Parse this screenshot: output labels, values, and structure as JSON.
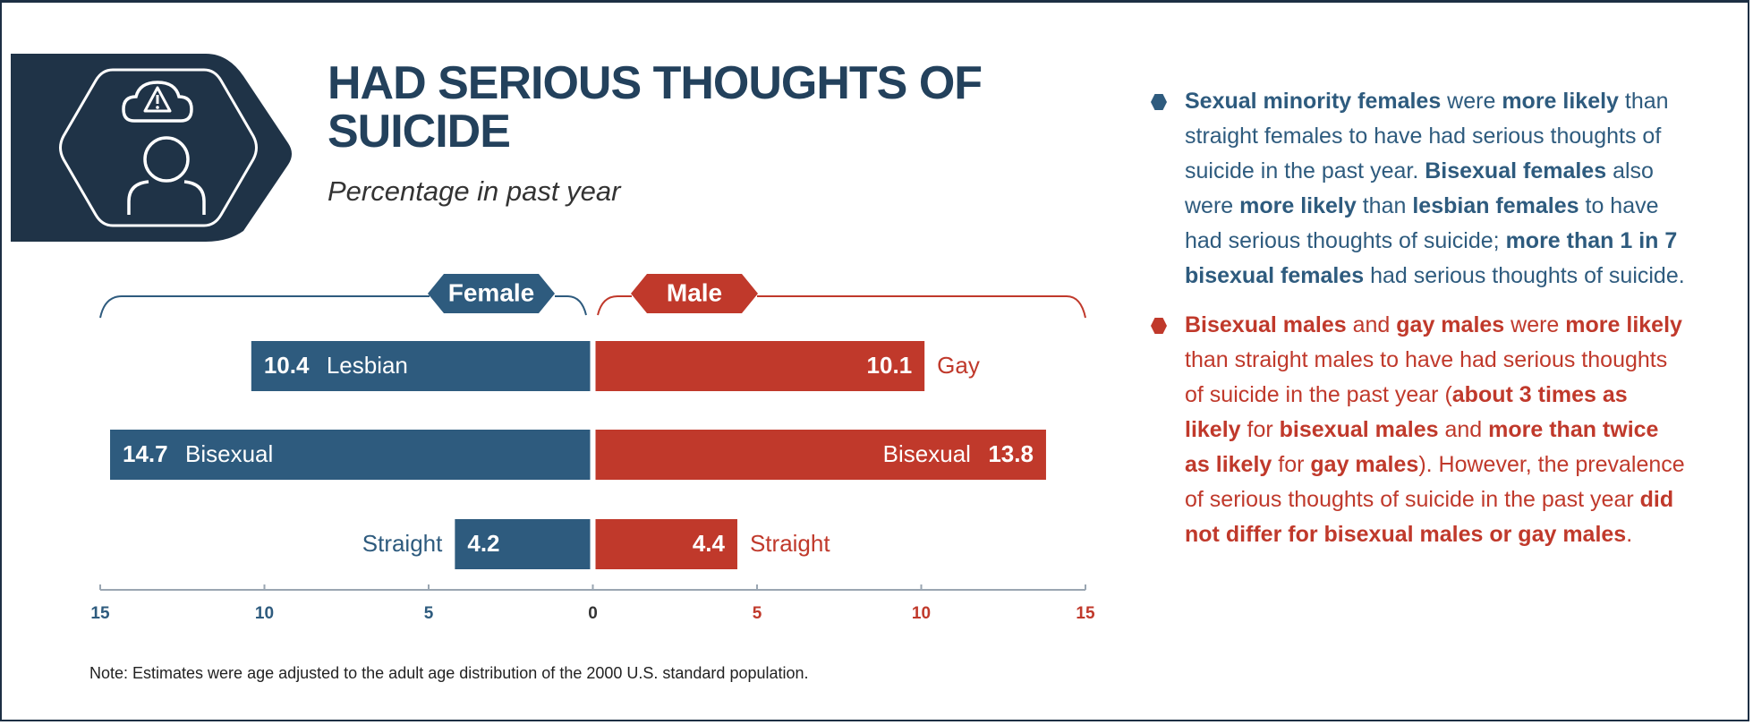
{
  "chart_data": {
    "type": "butterfly",
    "title": "HAD SERIOUS THOUGHTS OF SUICIDE",
    "subtitle": "Percentage in past year",
    "series": [
      {
        "name": "Female",
        "color": "#2e5b7e",
        "labels": [
          "Lesbian",
          "Bisexual",
          "Straight"
        ],
        "values": [
          10.4,
          14.7,
          4.2
        ]
      },
      {
        "name": "Male",
        "color": "#c0392b",
        "labels": [
          "Gay",
          "Bisexual",
          "Straight"
        ],
        "values": [
          10.1,
          13.8,
          4.4
        ]
      }
    ],
    "xlim": [
      -15,
      15
    ],
    "xticks": [
      {
        "value": -15,
        "label": "15"
      },
      {
        "value": -10,
        "label": "10"
      },
      {
        "value": -5,
        "label": "5"
      },
      0,
      5,
      10,
      15
    ],
    "note": "Note: Estimates were age adjusted to the adult age distribution of the 2000 U.S. standard population.",
    "bullets": [
      {
        "color": "#2e5b7e",
        "runs": [
          {
            "text": "Sexual minority females",
            "bold": true
          },
          {
            "text": " were "
          },
          {
            "text": "more likely",
            "bold": true
          },
          {
            "text": " than straight females to have had serious thoughts of suicide in the past year. "
          },
          {
            "text": "Bisexual females",
            "bold": true
          },
          {
            "text": " also were "
          },
          {
            "text": "more likely",
            "bold": true
          },
          {
            "text": " than "
          },
          {
            "text": "lesbian females",
            "bold": true
          },
          {
            "text": " to have had serious thoughts of suicide; "
          },
          {
            "text": "more than 1 in 7 bisexual females",
            "bold": true
          },
          {
            "text": " had serious thoughts of suicide."
          }
        ]
      },
      {
        "color": "#c0392b",
        "runs": [
          {
            "text": "Bisexual males",
            "bold": true
          },
          {
            "text": " and "
          },
          {
            "text": "gay males",
            "bold": true
          },
          {
            "text": " were "
          },
          {
            "text": "more likely",
            "bold": true
          },
          {
            "text": " than straight males to have had serious thoughts of suicide in the past year ("
          },
          {
            "text": "about 3 times as likely",
            "bold": true
          },
          {
            "text": " for "
          },
          {
            "text": "bisexual males",
            "bold": true
          },
          {
            "text": " and "
          },
          {
            "text": "more than twice as likely",
            "bold": true
          },
          {
            "text": " for "
          },
          {
            "text": "gay males",
            "bold": true
          },
          {
            "text": "). However, the prevalence of serious thoughts of suicide in the past year "
          },
          {
            "text": "did not differ for bisexual males or gay males",
            "bold": true
          },
          {
            "text": "."
          }
        ]
      }
    ]
  }
}
